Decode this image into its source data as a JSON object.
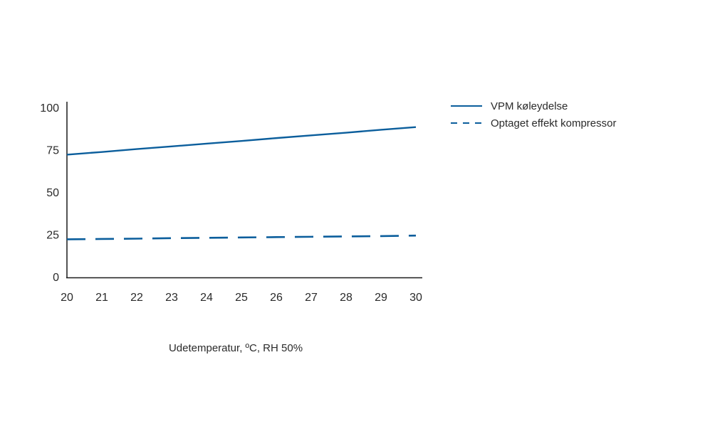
{
  "chart_data": {
    "type": "line",
    "title": "",
    "xlabel": "Udetemperatur, ºC, RH 50%",
    "ylabel": "",
    "x": [
      20,
      21,
      22,
      23,
      24,
      25,
      26,
      27,
      28,
      29,
      30
    ],
    "xlim": [
      20,
      30
    ],
    "ylim": [
      0,
      100
    ],
    "x_ticks": [
      "20",
      "21",
      "22",
      "23",
      "24",
      "25",
      "26",
      "27",
      "28",
      "29",
      "30"
    ],
    "y_ticks": [
      "0",
      "25",
      "50",
      "75",
      "100"
    ],
    "grid": false,
    "legend_position": "top-right",
    "series": [
      {
        "name": "VPM køleydelse",
        "style": "solid",
        "color": "#0b5e9c",
        "values": [
          72.5,
          74.1,
          75.8,
          77.4,
          79.0,
          80.6,
          82.3,
          83.9,
          85.5,
          87.2,
          88.8
        ]
      },
      {
        "name": "Optaget effekt kompressor",
        "style": "dashed",
        "color": "#0b5e9c",
        "values": [
          22.5,
          22.7,
          22.9,
          23.2,
          23.4,
          23.6,
          23.8,
          24.0,
          24.2,
          24.4,
          24.7
        ]
      }
    ]
  }
}
